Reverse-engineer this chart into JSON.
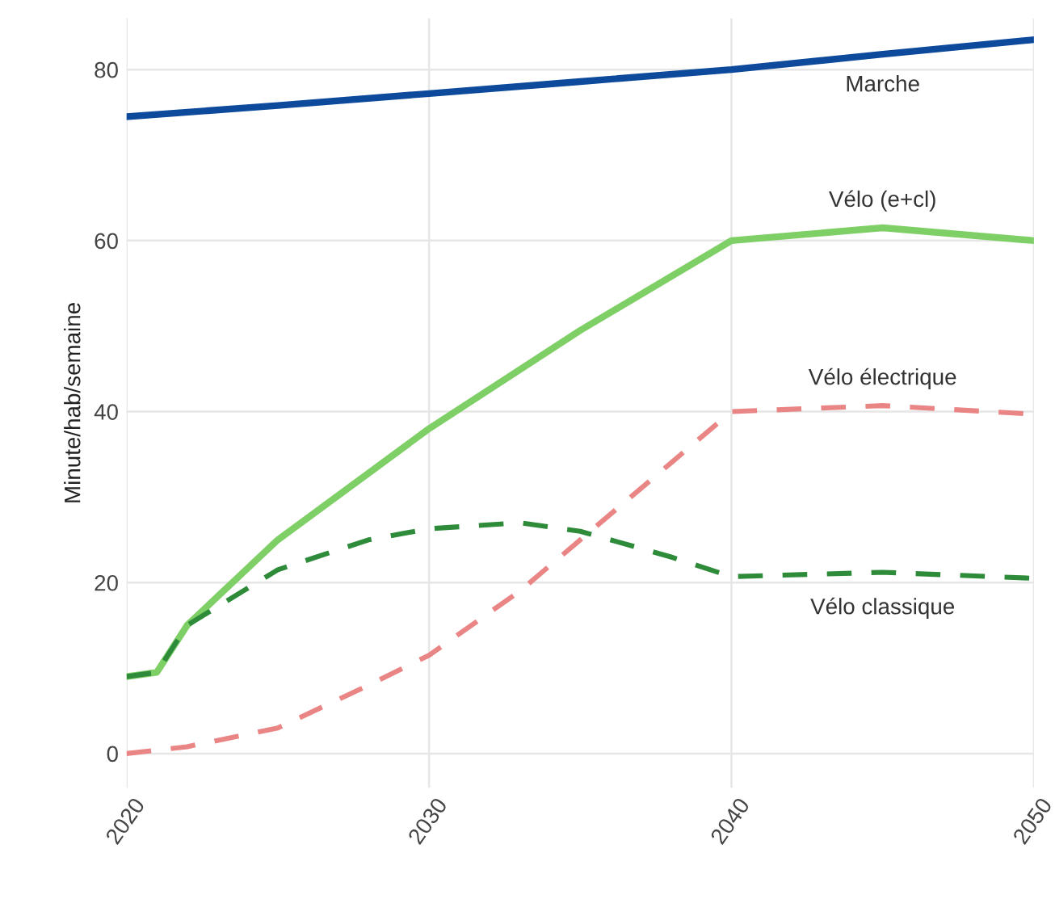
{
  "chart_data": {
    "type": "line",
    "ylabel": "Minute/hab/semaine",
    "xlim": [
      2020,
      2050
    ],
    "xticks": [
      2020,
      2030,
      2040,
      2050
    ],
    "ylim": [
      -4,
      86
    ],
    "yticks": [
      0,
      20,
      40,
      60,
      80
    ],
    "grid": true,
    "legend": false,
    "marker": "none",
    "series": [
      {
        "name": "Marche",
        "color": "#0d4a9c",
        "line_style": "solid",
        "x": [
          2020,
          2025,
          2030,
          2035,
          2040,
          2045,
          2050
        ],
        "values": [
          74.5,
          75.8,
          77.2,
          78.6,
          80.0,
          81.8,
          83.5
        ]
      },
      {
        "name": "Vélo (e+cl)",
        "color": "#7fcf67",
        "line_style": "solid",
        "x": [
          2020,
          2021,
          2022,
          2025,
          2030,
          2035,
          2040,
          2045,
          2050
        ],
        "values": [
          9,
          9.5,
          15,
          25,
          38,
          49.5,
          60,
          61.5,
          60
        ]
      },
      {
        "name": "Vélo électrique",
        "color": "#ea8585",
        "line_style": "dashed",
        "x": [
          2020,
          2022,
          2025,
          2028,
          2030,
          2033,
          2035,
          2038,
          2040,
          2045,
          2050
        ],
        "values": [
          0,
          0.8,
          3,
          8,
          11.5,
          19,
          25,
          34,
          40,
          40.7,
          39.7
        ]
      },
      {
        "name": "Vélo classique",
        "color": "#2e8b3a",
        "line_style": "dashed",
        "x": [
          2020,
          2021,
          2022,
          2025,
          2028,
          2030,
          2033,
          2035,
          2038,
          2040,
          2045,
          2050
        ],
        "values": [
          9,
          9.5,
          15,
          21.5,
          25,
          26.3,
          27,
          26,
          23,
          20.7,
          21.2,
          20.5
        ]
      }
    ]
  }
}
